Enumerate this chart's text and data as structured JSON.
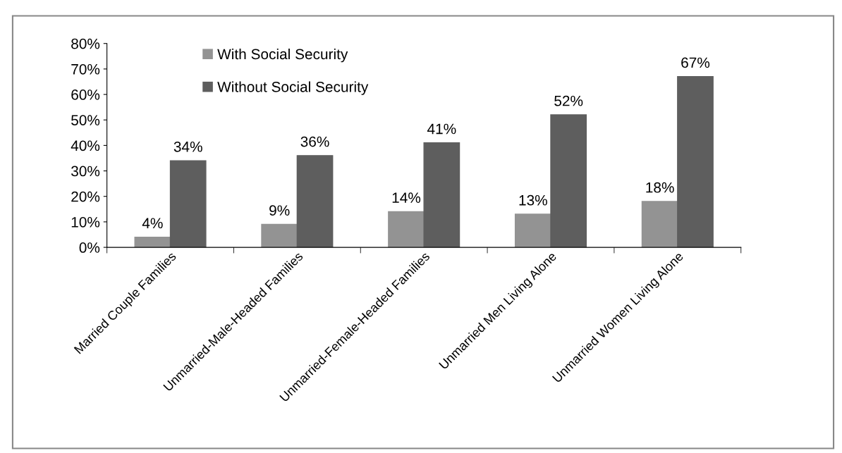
{
  "chart_data": {
    "type": "bar",
    "categories": [
      "Married Couple Families",
      "Unmarried-Male-Headed Families",
      "Unmarried-Female-Headed Families",
      "Unmarried Men Living Alone",
      "Unmarried Women Living Alone"
    ],
    "series": [
      {
        "name": "With Social Security",
        "color": "#939393",
        "values": [
          4,
          9,
          14,
          13,
          18
        ],
        "value_labels": [
          "4%",
          "9%",
          "14%",
          "13%",
          "18%"
        ]
      },
      {
        "name": "Without Social Security",
        "color": "#5e5e5e",
        "values": [
          34,
          36,
          41,
          52,
          67
        ],
        "value_labels": [
          "34%",
          "36%",
          "41%",
          "52%",
          "67%"
        ]
      }
    ],
    "ylim": [
      0,
      80
    ],
    "yticks": [
      {
        "value": 0,
        "label": "0%"
      },
      {
        "value": 10,
        "label": "10%"
      },
      {
        "value": 20,
        "label": "20%"
      },
      {
        "value": 30,
        "label": "30%"
      },
      {
        "value": 40,
        "label": "40%"
      },
      {
        "value": 50,
        "label": "50%"
      },
      {
        "value": 60,
        "label": "60%"
      },
      {
        "value": 70,
        "label": "70%"
      },
      {
        "value": 80,
        "label": "80%"
      }
    ],
    "grid": false,
    "legend": "top left"
  }
}
